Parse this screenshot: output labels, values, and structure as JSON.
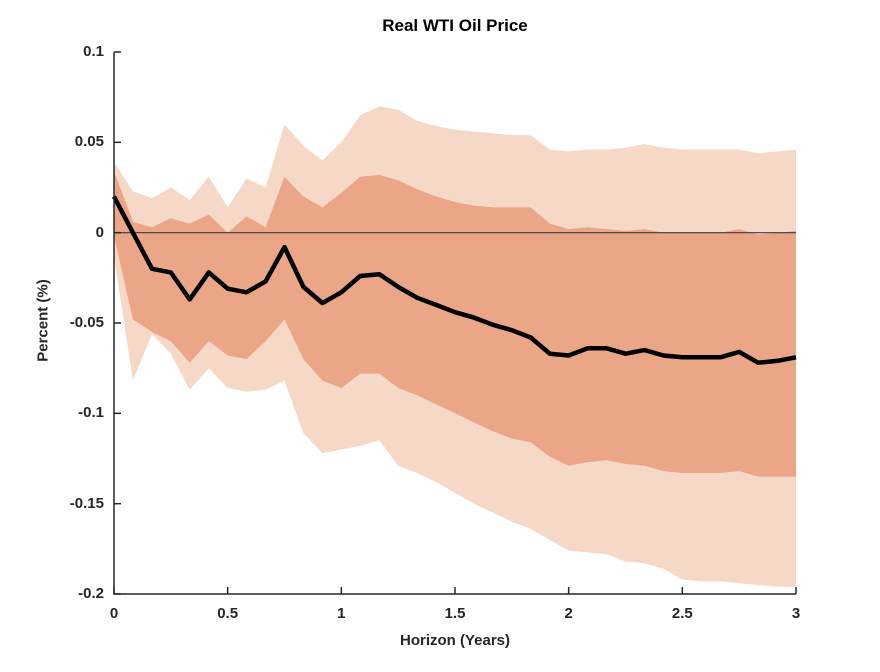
{
  "chart_data": {
    "type": "area",
    "title": "Real WTI Oil Price",
    "xlabel": "Horizon (Years)",
    "ylabel": "Percent (%)",
    "xlim": [
      0,
      3
    ],
    "ylim": [
      -0.2,
      0.1
    ],
    "grid": false,
    "legend": "none",
    "axis_color": "#262626",
    "zero_line": {
      "y": 0,
      "color": "#3c3c3c"
    },
    "xticks": [
      0,
      0.5,
      1,
      1.5,
      2,
      2.5,
      3
    ],
    "xtick_labels": [
      "0",
      "0.5",
      "1",
      "1.5",
      "2",
      "2.5",
      "3"
    ],
    "yticks": [
      0.1,
      0.05,
      0,
      -0.05,
      -0.1,
      -0.15,
      -0.2
    ],
    "ytick_labels": [
      "0.1",
      "0.05",
      "0",
      "-0.05",
      "-0.1",
      "-0.15",
      "-0.2"
    ],
    "x": [
      0,
      0.083,
      0.167,
      0.25,
      0.333,
      0.417,
      0.5,
      0.583,
      0.667,
      0.75,
      0.833,
      0.917,
      1,
      1.083,
      1.167,
      1.25,
      1.333,
      1.417,
      1.5,
      1.583,
      1.667,
      1.75,
      1.833,
      1.917,
      2,
      2.083,
      2.167,
      2.25,
      2.333,
      2.417,
      2.5,
      2.583,
      2.667,
      2.75,
      2.833,
      2.917,
      3
    ],
    "series": [
      {
        "name": "outer-band",
        "role": "band",
        "color": "#F6D8C7",
        "upper": [
          0.039,
          0.023,
          0.019,
          0.025,
          0.018,
          0.031,
          0.014,
          0.03,
          0.025,
          0.06,
          0.048,
          0.04,
          0.05,
          0.065,
          0.07,
          0.068,
          0.062,
          0.059,
          0.057,
          0.056,
          0.055,
          0.054,
          0.054,
          0.046,
          0.045,
          0.046,
          0.046,
          0.047,
          0.049,
          0.047,
          0.046,
          0.046,
          0.046,
          0.046,
          0.044,
          0.045,
          0.046
        ],
        "lower": [
          -0.013,
          -0.082,
          -0.056,
          -0.067,
          -0.087,
          -0.075,
          -0.086,
          -0.088,
          -0.087,
          -0.082,
          -0.111,
          -0.122,
          -0.12,
          -0.118,
          -0.115,
          -0.129,
          -0.133,
          -0.138,
          -0.144,
          -0.15,
          -0.155,
          -0.16,
          -0.164,
          -0.17,
          -0.176,
          -0.177,
          -0.178,
          -0.182,
          -0.183,
          -0.186,
          -0.192,
          -0.193,
          -0.193,
          -0.194,
          -0.195,
          -0.196,
          -0.196
        ]
      },
      {
        "name": "inner-band",
        "role": "band",
        "color": "#EAA687",
        "upper": [
          0.034,
          0.006,
          0.003,
          0.008,
          0.005,
          0.01,
          0,
          0.009,
          0.003,
          0.031,
          0.02,
          0.014,
          0.022,
          0.031,
          0.032,
          0.029,
          0.024,
          0.02,
          0.017,
          0.015,
          0.014,
          0.014,
          0.014,
          0.005,
          0.002,
          0.003,
          0.002,
          0.001,
          0.002,
          0,
          0,
          0,
          0,
          0.002,
          -0.001,
          0,
          0.001
        ],
        "lower": [
          -0.002,
          -0.048,
          -0.055,
          -0.06,
          -0.072,
          -0.06,
          -0.068,
          -0.07,
          -0.06,
          -0.048,
          -0.07,
          -0.082,
          -0.086,
          -0.078,
          -0.078,
          -0.086,
          -0.09,
          -0.095,
          -0.1,
          -0.105,
          -0.11,
          -0.114,
          -0.116,
          -0.124,
          -0.129,
          -0.127,
          -0.126,
          -0.128,
          -0.129,
          -0.132,
          -0.133,
          -0.133,
          -0.133,
          -0.132,
          -0.135,
          -0.135,
          -0.135
        ]
      },
      {
        "name": "median",
        "role": "line",
        "color": "#000000",
        "width": 4.5,
        "values": [
          0.02,
          0,
          -0.02,
          -0.022,
          -0.037,
          -0.022,
          -0.031,
          -0.033,
          -0.027,
          -0.008,
          -0.03,
          -0.039,
          -0.033,
          -0.024,
          -0.023,
          -0.03,
          -0.036,
          -0.04,
          -0.044,
          -0.047,
          -0.051,
          -0.054,
          -0.058,
          -0.067,
          -0.068,
          -0.064,
          -0.064,
          -0.067,
          -0.065,
          -0.068,
          -0.069,
          -0.069,
          -0.069,
          -0.066,
          -0.072,
          -0.071,
          -0.069
        ]
      }
    ]
  }
}
